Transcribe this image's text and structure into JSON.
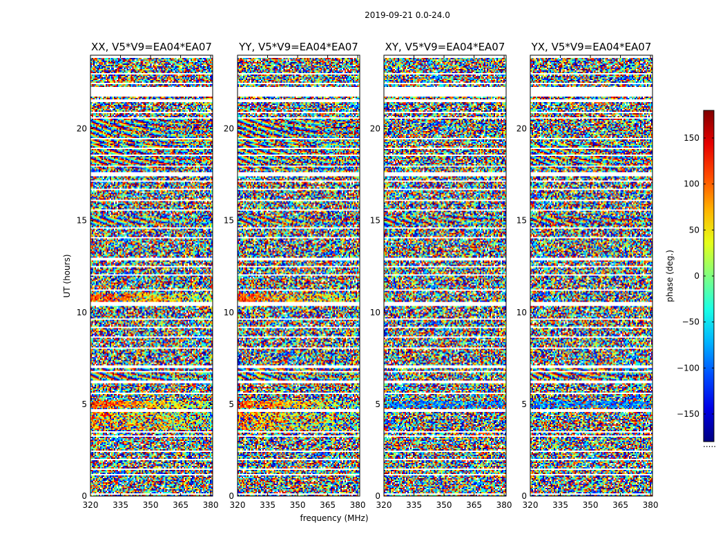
{
  "chart_data": {
    "type": "heatmap",
    "suptitle": "2019-09-21 0.0-24.0",
    "xlabel": "frequency (MHz)",
    "ylabel": "UT (hours)",
    "xlim": [
      320,
      381
    ],
    "ylim": [
      0,
      24
    ],
    "x_ticks": [
      320,
      335,
      350,
      365,
      380
    ],
    "y_ticks": [
      0,
      5,
      10,
      15,
      20
    ],
    "colorbar": {
      "label": "phase (deg.)",
      "range": [
        -180,
        180
      ],
      "ticks": [
        150,
        100,
        50,
        0,
        -50,
        -100,
        -150
      ],
      "tick_labels": [
        "150",
        "100",
        "50",
        "0",
        "−50",
        "−100",
        "−150"
      ],
      "colormap": [
        "#00007f",
        "#0000ff",
        "#0080ff",
        "#00e5ff",
        "#7dff7a",
        "#ffeb00",
        "#ff8c00",
        "#ff1a00",
        "#7f0000"
      ],
      "bottom_note": "....."
    },
    "panels": [
      {
        "title": "XX, V5*V9=EA04*EA07",
        "fringe": 1.0
      },
      {
        "title": "YY, V5*V9=EA04*EA07",
        "fringe": 1.0
      },
      {
        "title": "XY, V5*V9=EA04*EA07",
        "fringe": 0.25
      },
      {
        "title": "YX, V5*V9=EA04*EA07",
        "fringe": 0.45
      }
    ],
    "gaps_hours": [
      [
        0.05,
        0.12
      ],
      [
        0.42,
        0.47
      ],
      [
        1.12,
        1.2
      ],
      [
        1.42,
        1.5
      ],
      [
        1.98,
        2.02
      ],
      [
        2.42,
        2.5
      ],
      [
        2.68,
        2.72
      ],
      [
        3.22,
        3.3
      ],
      [
        3.48,
        3.55
      ],
      [
        4.58,
        4.72
      ],
      [
        5.15,
        5.2
      ],
      [
        5.55,
        5.62
      ],
      [
        6.18,
        6.28
      ],
      [
        6.72,
        6.8
      ],
      [
        7.0,
        7.1
      ],
      [
        7.25,
        7.3
      ],
      [
        8.05,
        8.1
      ],
      [
        8.6,
        8.7
      ],
      [
        9.18,
        9.25
      ],
      [
        9.62,
        9.68
      ],
      [
        10.38,
        10.55
      ],
      [
        11.15,
        11.22
      ],
      [
        11.98,
        12.1
      ],
      [
        12.48,
        12.55
      ],
      [
        12.85,
        13.0
      ],
      [
        13.4,
        13.45
      ],
      [
        14.05,
        14.12
      ],
      [
        14.58,
        14.62
      ],
      [
        15.12,
        15.18
      ],
      [
        15.55,
        15.62
      ],
      [
        16.08,
        16.12
      ],
      [
        16.62,
        16.7
      ],
      [
        17.1,
        17.15
      ],
      [
        17.38,
        17.6
      ],
      [
        17.95,
        18.0
      ],
      [
        18.52,
        18.58
      ],
      [
        18.92,
        19.0
      ],
      [
        19.42,
        19.48
      ],
      [
        20.55,
        20.62
      ],
      [
        20.88,
        20.92
      ],
      [
        21.45,
        21.6
      ],
      [
        21.75,
        22.25
      ],
      [
        22.45,
        22.52
      ],
      [
        22.98,
        23.05
      ],
      [
        23.85,
        24.0
      ]
    ],
    "coherent_bands": [
      {
        "y0": 19.2,
        "y1": 20.6,
        "type": "fringe",
        "panels": [
          0,
          1
        ]
      },
      {
        "y0": 17.8,
        "y1": 19.2,
        "type": "fringe",
        "panels": [
          0,
          1,
          3
        ]
      },
      {
        "y0": 14.8,
        "y1": 15.2,
        "type": "fringe",
        "panels": [
          0,
          1,
          2,
          3
        ]
      },
      {
        "y0": 10.6,
        "y1": 11.0,
        "type": "hot",
        "panels": [
          0,
          1
        ]
      },
      {
        "y0": 6.3,
        "y1": 7.0,
        "type": "fringe",
        "panels": [
          0,
          1,
          3
        ]
      },
      {
        "y0": 4.8,
        "y1": 5.15,
        "type": "hot",
        "panels": [
          0,
          1
        ]
      },
      {
        "y0": 4.8,
        "y1": 5.15,
        "type": "cool",
        "panels": [
          2,
          3
        ]
      },
      {
        "y0": 3.6,
        "y1": 4.55,
        "type": "warm",
        "panels": [
          0,
          1
        ]
      }
    ]
  }
}
